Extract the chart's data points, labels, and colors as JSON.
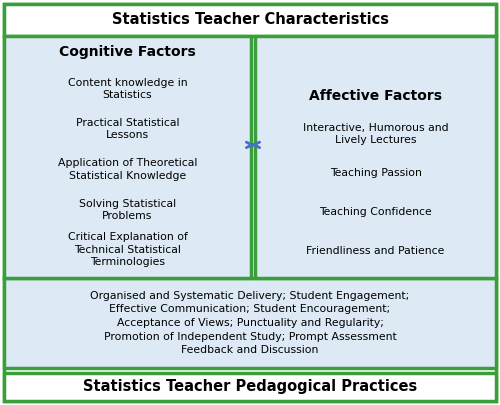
{
  "title_top": "Statistics Teacher Characteristics",
  "title_bottom": "Statistics Teacher Pedagogical Practices",
  "cognitive_title": "Cognitive Factors",
  "cognitive_items": [
    "Content knowledge in\nStatistics",
    "Practical Statistical\nLessons",
    "Application of Theoretical\nStatistical Knowledge",
    "Solving Statistical\nProblems",
    "Critical Explanation of\nTechnical Statistical\nTerminologies"
  ],
  "affective_title": "Affective Factors",
  "affective_items": [
    "Interactive, Humorous and\nLively Lectures",
    "Teaching Passion",
    "Teaching Confidence",
    "Friendliness and Patience"
  ],
  "pedagogical_text": "Organised and Systematic Delivery; Student Engagement;\nEffective Communication; Student Encouragement;\nAcceptance of Views; Punctuality and Regularity;\nPromotion of Independent Study; Prompt Assessment\nFeedback and Discussion",
  "outer_border_color": "#3a9e3a",
  "box_bg_color": "#ddeaf5",
  "outer_bg_color": "#ffffff",
  "arrow_color": "#4472c4",
  "font_color": "#000000",
  "figw": 5.0,
  "figh": 4.05,
  "dpi": 100
}
